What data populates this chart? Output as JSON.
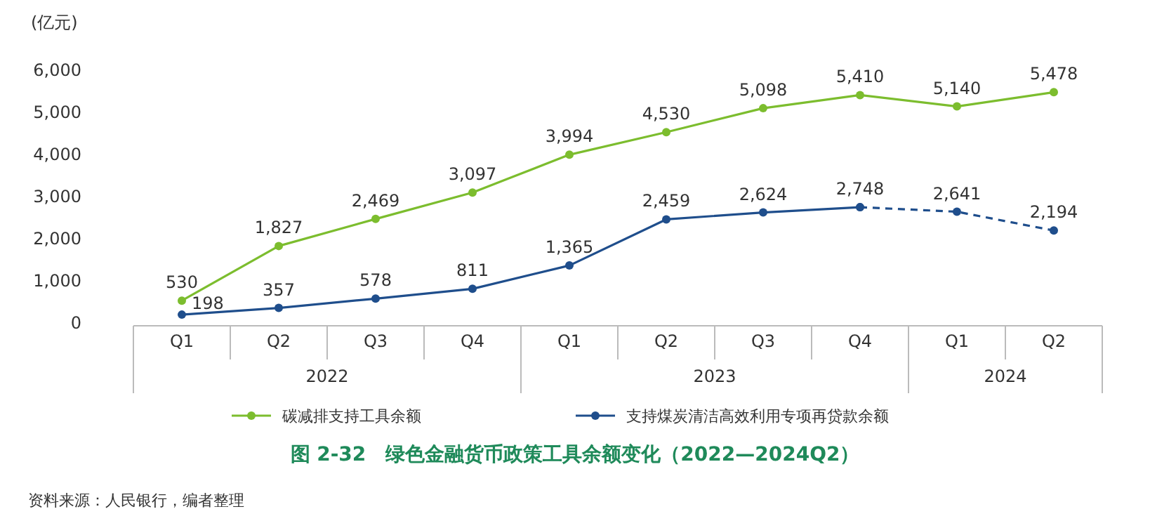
{
  "chart_data": {
    "type": "line",
    "title": "图 2-32　绿色金融货币政策工具余额变化（2022—2024Q2）",
    "ylabel": "(亿元)",
    "categories": [
      "Q1",
      "Q2",
      "Q3",
      "Q4",
      "Q1",
      "Q2",
      "Q3",
      "Q4",
      "Q1",
      "Q2"
    ],
    "annotations": [
      "2022",
      "2023",
      "2024",
      "资料来源：人民银行，编者整理"
    ],
    "ylim": [
      0,
      6000
    ],
    "yticks": [
      0,
      {
        "value": 1000,
        "label": "1,000"
      },
      {
        "value": 2000,
        "label": "2,000"
      },
      {
        "value": 3000,
        "label": "3,000"
      },
      {
        "value": 4000,
        "label": "4,000"
      },
      {
        "value": 5000,
        "label": "5,000"
      },
      {
        "value": 6000,
        "label": "6,000"
      }
    ],
    "grid": false,
    "legend": "bottom",
    "marker": "circle",
    "series": [
      {
        "name": "碳减排支持工具余额",
        "color": "#7cbd2e",
        "values": [
          530,
          1827,
          2469,
          3097,
          3994,
          4530,
          5098,
          5410,
          5140,
          5478
        ],
        "value_labels": [
          "530",
          "1,827",
          "2,469",
          "3,097",
          "3,994",
          "4,530",
          "5,098",
          "5,410",
          "5,140",
          "5,478"
        ]
      },
      {
        "name": "支持煤炭清洁高效利用专项再贷款余额",
        "color": "#1f4e8c",
        "values": [
          198,
          357,
          578,
          811,
          1365,
          2459,
          2624,
          2748,
          null,
          null
        ],
        "value_labels": [
          "198",
          "357",
          "578",
          "811",
          "1,365",
          "2,459",
          "2,624",
          "2,748",
          null,
          null
        ]
      },
      {
        "color": "#1f4e8c",
        "line_style": "dashed",
        "values": [
          null,
          null,
          null,
          null,
          null,
          null,
          null,
          2748,
          2641,
          2194
        ],
        "value_labels": [
          null,
          null,
          null,
          null,
          null,
          null,
          null,
          null,
          "2,641",
          "2,194"
        ]
      }
    ]
  }
}
